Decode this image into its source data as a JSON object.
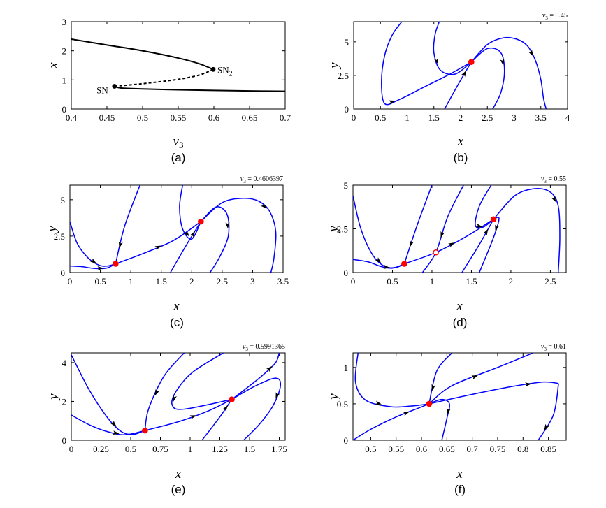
{
  "colors": {
    "trajectory": "#0000ff",
    "fixed_point": "#ff0000",
    "bifurcation_curve": "#000000",
    "axes": "#000000"
  },
  "chart_data": [
    {
      "panel": "(a)",
      "type": "line",
      "xlabel": "v3",
      "xlabel_sub": "3",
      "ylabel": "x",
      "xlim": [
        0.4,
        0.7
      ],
      "ylim": [
        0,
        3
      ],
      "xticks": [
        "0.4",
        "0.45",
        "0.5",
        "0.55",
        "0.6",
        "0.65",
        "0.7"
      ],
      "yticks": [
        "0",
        "1",
        "2",
        "3"
      ],
      "series": [
        {
          "style": "solid",
          "x": [
            0.4,
            0.45,
            0.5,
            0.55,
            0.58,
            0.599
          ],
          "y": [
            2.4,
            2.2,
            2.0,
            1.75,
            1.55,
            1.36
          ]
        },
        {
          "style": "dashed",
          "x": [
            0.4606,
            0.5,
            0.55,
            0.58,
            0.599
          ],
          "y": [
            0.78,
            0.87,
            1.02,
            1.17,
            1.36
          ]
        },
        {
          "style": "solid",
          "x": [
            0.4606,
            0.47,
            0.5,
            0.55,
            0.6,
            0.65,
            0.7
          ],
          "y": [
            0.78,
            0.72,
            0.69,
            0.66,
            0.64,
            0.62,
            0.61
          ]
        }
      ],
      "points": [
        {
          "label": "SN1",
          "label_main": "SN",
          "label_sub": "1",
          "x": 0.4606,
          "y": 0.78
        },
        {
          "label": "SN2",
          "label_main": "SN",
          "label_sub": "2",
          "x": 0.599,
          "y": 1.36
        }
      ]
    },
    {
      "panel": "(b)",
      "type": "line",
      "param": "v3 = 0.45",
      "param_main": "v",
      "param_sub": "3",
      "param_value": " = 0.45",
      "xlabel": "x",
      "ylabel": "y",
      "xlim": [
        0,
        4
      ],
      "ylim": [
        0,
        6.5
      ],
      "xticks": [
        "0",
        "0.5",
        "1",
        "1.5",
        "2",
        "2.5",
        "3",
        "3.5",
        "4"
      ],
      "yticks": [
        "0",
        "2.5",
        "5"
      ],
      "series": [
        {
          "x": [
            0.9,
            0.72,
            0.58,
            0.52,
            0.58,
            0.85,
            1.3,
            1.8,
            2.2
          ],
          "y": [
            6.5,
            5.5,
            4.0,
            2.0,
            0.4,
            0.7,
            1.6,
            2.6,
            3.5
          ]
        },
        {
          "x": [
            1.6,
            1.52,
            1.5,
            1.62,
            1.9,
            2.2
          ],
          "y": [
            6.5,
            5.5,
            4.2,
            2.9,
            2.6,
            3.5
          ]
        },
        {
          "x": [
            1.7,
            1.95,
            2.2
          ],
          "y": [
            0.0,
            1.8,
            3.5
          ]
        },
        {
          "x": [
            2.2,
            2.5,
            2.75,
            2.82,
            2.75,
            2.6
          ],
          "y": [
            3.5,
            4.5,
            4.2,
            2.8,
            1.2,
            0.0
          ]
        },
        {
          "x": [
            2.2,
            2.5,
            2.8,
            3.05,
            3.25,
            3.4,
            3.5,
            3.55,
            3.6
          ],
          "y": [
            3.5,
            4.8,
            5.3,
            5.2,
            4.7,
            3.6,
            2.2,
            0.8,
            0.0
          ]
        }
      ],
      "fixed_points": [
        {
          "x": 2.2,
          "y": 3.5,
          "filled": true
        }
      ]
    },
    {
      "panel": "(c)",
      "type": "line",
      "param": "v3 = 0.4606397",
      "param_main": "v",
      "param_sub": "3",
      "param_value": " = 0.4606397",
      "xlabel": "x",
      "ylabel": "y",
      "xlim": [
        0,
        3.5
      ],
      "ylim": [
        0,
        6
      ],
      "xticks": [
        "0",
        "0.5",
        "1",
        "1.5",
        "2",
        "2.5",
        "3",
        "3.5"
      ],
      "yticks": [
        "0",
        "2.5",
        "5"
      ],
      "series": [
        {
          "x": [
            0.0,
            0.12,
            0.3,
            0.48,
            0.62,
            0.75
          ],
          "y": [
            3.5,
            2.0,
            1.0,
            0.5,
            0.45,
            0.6
          ]
        },
        {
          "x": [
            0.0,
            0.2,
            0.4,
            0.6,
            0.75
          ],
          "y": [
            0.45,
            0.4,
            0.28,
            0.3,
            0.6
          ]
        },
        {
          "x": [
            0.75,
            1.2,
            1.7,
            2.15
          ],
          "y": [
            0.6,
            1.3,
            2.2,
            3.5
          ]
        },
        {
          "x": [
            1.15,
            0.9,
            0.75
          ],
          "y": [
            6.0,
            3.2,
            0.6
          ]
        },
        {
          "x": [
            1.85,
            1.8,
            1.85,
            2.0,
            2.15
          ],
          "y": [
            6.0,
            4.5,
            3.0,
            2.3,
            3.5
          ]
        },
        {
          "x": [
            1.65,
            1.9,
            2.15
          ],
          "y": [
            0.0,
            1.8,
            3.5
          ]
        },
        {
          "x": [
            2.15,
            2.4,
            2.58,
            2.6,
            2.45,
            2.3
          ],
          "y": [
            3.5,
            4.5,
            4.0,
            2.5,
            1.0,
            0.0
          ]
        },
        {
          "x": [
            2.15,
            2.5,
            2.85,
            3.1,
            3.28,
            3.38,
            3.35,
            3.3
          ],
          "y": [
            3.5,
            4.8,
            5.1,
            4.9,
            4.2,
            2.8,
            1.0,
            0.0
          ]
        }
      ],
      "fixed_points": [
        {
          "x": 0.75,
          "y": 0.6,
          "filled": true
        },
        {
          "x": 2.15,
          "y": 3.5,
          "filled": true
        }
      ]
    },
    {
      "panel": "(d)",
      "type": "line",
      "param": "v3 = 0.55",
      "param_main": "v",
      "param_sub": "3",
      "param_value": " = 0.55",
      "xlabel": "x",
      "ylabel": "y",
      "xlim": [
        0,
        2.7
      ],
      "ylim": [
        0,
        5
      ],
      "xticks": [
        "0",
        "0.5",
        "1",
        "1.5",
        "2",
        "2.5"
      ],
      "yticks": [
        "0",
        "2.5",
        "5"
      ],
      "series": [
        {
          "x": [
            0.0,
            0.1,
            0.25,
            0.4,
            0.55,
            0.65
          ],
          "y": [
            4.4,
            2.5,
            1.0,
            0.35,
            0.3,
            0.5
          ]
        },
        {
          "x": [
            0.0,
            0.2,
            0.35,
            0.5,
            0.65
          ],
          "y": [
            0.75,
            0.6,
            0.35,
            0.25,
            0.5
          ]
        },
        {
          "x": [
            0.65,
            1.05,
            1.45,
            1.78
          ],
          "y": [
            0.5,
            1.15,
            2.1,
            3.05
          ]
        },
        {
          "x": [
            1.0,
            0.82,
            0.65
          ],
          "y": [
            5.0,
            2.8,
            0.5
          ]
        },
        {
          "x": [
            1.4,
            1.2,
            1.05,
            0.88
          ],
          "y": [
            5.0,
            3.2,
            1.15,
            0.0
          ]
        },
        {
          "x": [
            1.75,
            1.6,
            1.55,
            1.65,
            1.78
          ],
          "y": [
            5.0,
            3.8,
            2.7,
            2.6,
            3.05
          ]
        },
        {
          "x": [
            1.38,
            1.6,
            1.78
          ],
          "y": [
            0.0,
            1.6,
            3.05
          ]
        },
        {
          "x": [
            1.78,
            1.85,
            1.78,
            1.6
          ],
          "y": [
            3.05,
            3.1,
            2.0,
            0.0
          ]
        },
        {
          "x": [
            1.78,
            2.05,
            2.3,
            2.5,
            2.6,
            2.62,
            2.6
          ],
          "y": [
            3.05,
            4.4,
            4.8,
            4.6,
            3.8,
            2.0,
            0.0
          ]
        }
      ],
      "fixed_points": [
        {
          "x": 0.65,
          "y": 0.5,
          "filled": true
        },
        {
          "x": 1.05,
          "y": 1.15,
          "filled": false
        },
        {
          "x": 1.78,
          "y": 3.05,
          "filled": true
        }
      ]
    },
    {
      "panel": "(e)",
      "type": "line",
      "param": "v3 = 0.5991365",
      "param_main": "v",
      "param_sub": "3",
      "param_value": " = 0.5991365",
      "xlabel": "x",
      "ylabel": "y",
      "xlim": [
        0,
        1.8
      ],
      "ylim": [
        0,
        4.5
      ],
      "xticks": [
        "0",
        "0.25",
        "0.5",
        "0.75",
        "1",
        "1.25",
        "1.5",
        "1.75"
      ],
      "yticks": [
        "0",
        "2",
        "4"
      ],
      "series": [
        {
          "x": [
            0.0,
            0.15,
            0.3,
            0.42,
            0.52,
            0.62
          ],
          "y": [
            4.4,
            2.6,
            1.2,
            0.45,
            0.3,
            0.5
          ]
        },
        {
          "x": [
            0.0,
            0.15,
            0.3,
            0.45,
            0.62
          ],
          "y": [
            1.3,
            0.8,
            0.45,
            0.28,
            0.5
          ]
        },
        {
          "x": [
            0.62,
            0.9,
            1.15,
            1.35
          ],
          "y": [
            0.5,
            0.95,
            1.5,
            2.1
          ]
        },
        {
          "x": [
            0.95,
            0.78,
            0.65,
            0.62
          ],
          "y": [
            4.5,
            3.3,
            1.6,
            0.5
          ]
        },
        {
          "x": [
            1.28,
            1.02,
            0.88,
            0.85,
            0.95,
            1.35
          ],
          "y": [
            4.5,
            3.5,
            2.5,
            1.8,
            1.6,
            2.1
          ]
        },
        {
          "x": [
            1.1,
            1.25,
            1.35
          ],
          "y": [
            0.0,
            1.2,
            2.1
          ]
        },
        {
          "x": [
            1.35,
            1.5,
            1.62,
            1.72,
            1.75
          ],
          "y": [
            2.1,
            2.8,
            3.4,
            4.0,
            4.5
          ]
        },
        {
          "x": [
            1.35,
            1.55,
            1.72,
            1.76,
            1.7,
            1.58,
            1.45
          ],
          "y": [
            2.1,
            2.8,
            3.2,
            2.8,
            1.8,
            0.8,
            0.0
          ]
        }
      ],
      "fixed_points": [
        {
          "x": 0.62,
          "y": 0.5,
          "filled": true
        },
        {
          "x": 1.35,
          "y": 2.1,
          "filled": true
        }
      ]
    },
    {
      "panel": "(f)",
      "type": "line",
      "param": "v3 = 0.61",
      "param_main": "v",
      "param_sub": "3",
      "param_value": " = 0.61",
      "xlabel": "x",
      "ylabel": "y",
      "xlim": [
        0.465,
        0.885
      ],
      "ylim": [
        0,
        1.2
      ],
      "xticks": [
        "0.5",
        "0.55",
        "0.6",
        "0.65",
        "0.7",
        "0.75",
        "0.8",
        "0.85"
      ],
      "yticks": [
        "0",
        "0.5",
        "1"
      ],
      "series": [
        {
          "x": [
            0.475,
            0.47,
            0.49,
            0.54,
            0.58,
            0.615
          ],
          "y": [
            1.2,
            0.8,
            0.55,
            0.46,
            0.47,
            0.5
          ]
        },
        {
          "x": [
            0.465,
            0.5,
            0.55,
            0.59,
            0.615
          ],
          "y": [
            0.0,
            0.15,
            0.32,
            0.43,
            0.5
          ]
        },
        {
          "x": [
            0.615,
            0.7,
            0.78,
            0.84,
            0.87
          ],
          "y": [
            0.5,
            0.63,
            0.74,
            0.8,
            0.78
          ]
        },
        {
          "x": [
            0.87,
            0.86,
            0.83
          ],
          "y": [
            0.78,
            0.35,
            0.0
          ]
        },
        {
          "x": [
            0.66,
            0.63,
            0.615
          ],
          "y": [
            1.2,
            0.95,
            0.5
          ]
        },
        {
          "x": [
            0.615,
            0.66,
            0.75,
            0.82
          ],
          "y": [
            0.5,
            0.75,
            1.0,
            1.2
          ]
        },
        {
          "x": [
            0.615,
            0.64,
            0.655,
            0.65,
            0.64
          ],
          "y": [
            0.5,
            0.56,
            0.5,
            0.3,
            0.0
          ]
        }
      ],
      "fixed_points": [
        {
          "x": 0.615,
          "y": 0.5,
          "filled": true
        }
      ]
    }
  ]
}
